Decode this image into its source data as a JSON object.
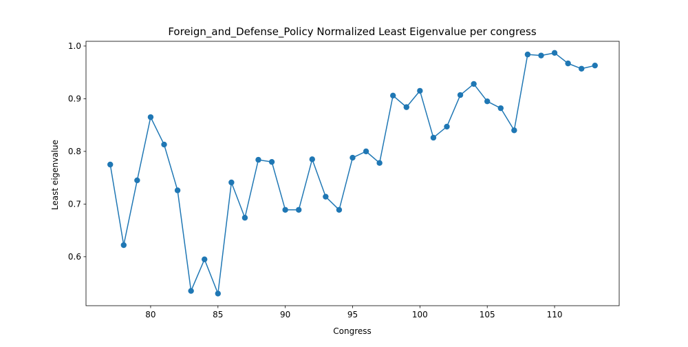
{
  "chart_data": {
    "type": "line",
    "title": "Foreign_and_Defense_Policy Normalized Least Eigenvalue per congress",
    "xlabel": "Congress",
    "ylabel": "Least eigenvalue",
    "xlim": [
      75.2,
      114.8
    ],
    "ylim": [
      0.507,
      1.009
    ],
    "xticks": [
      80,
      85,
      90,
      95,
      100,
      105,
      110
    ],
    "yticks": [
      0.6,
      0.7,
      0.8,
      0.9,
      1.0
    ],
    "ytick_labels": [
      "0.6",
      "0.7",
      "0.8",
      "0.9",
      "1.0"
    ],
    "grid": false,
    "series": [
      {
        "color": "#1f77b4",
        "marker": "circle",
        "x": [
          77,
          78,
          79,
          80,
          81,
          82,
          83,
          84,
          85,
          86,
          87,
          88,
          89,
          90,
          91,
          92,
          93,
          94,
          95,
          96,
          97,
          98,
          99,
          100,
          101,
          102,
          103,
          104,
          105,
          106,
          107,
          108,
          109,
          110,
          111,
          112,
          113
        ],
        "y": [
          0.775,
          0.622,
          0.745,
          0.865,
          0.813,
          0.726,
          0.535,
          0.595,
          0.53,
          0.741,
          0.674,
          0.784,
          0.78,
          0.689,
          0.689,
          0.785,
          0.714,
          0.689,
          0.788,
          0.8,
          0.778,
          0.906,
          0.884,
          0.915,
          0.826,
          0.847,
          0.907,
          0.928,
          0.895,
          0.882,
          0.84,
          0.984,
          0.982,
          0.987,
          0.967,
          0.957,
          0.963
        ]
      }
    ]
  }
}
